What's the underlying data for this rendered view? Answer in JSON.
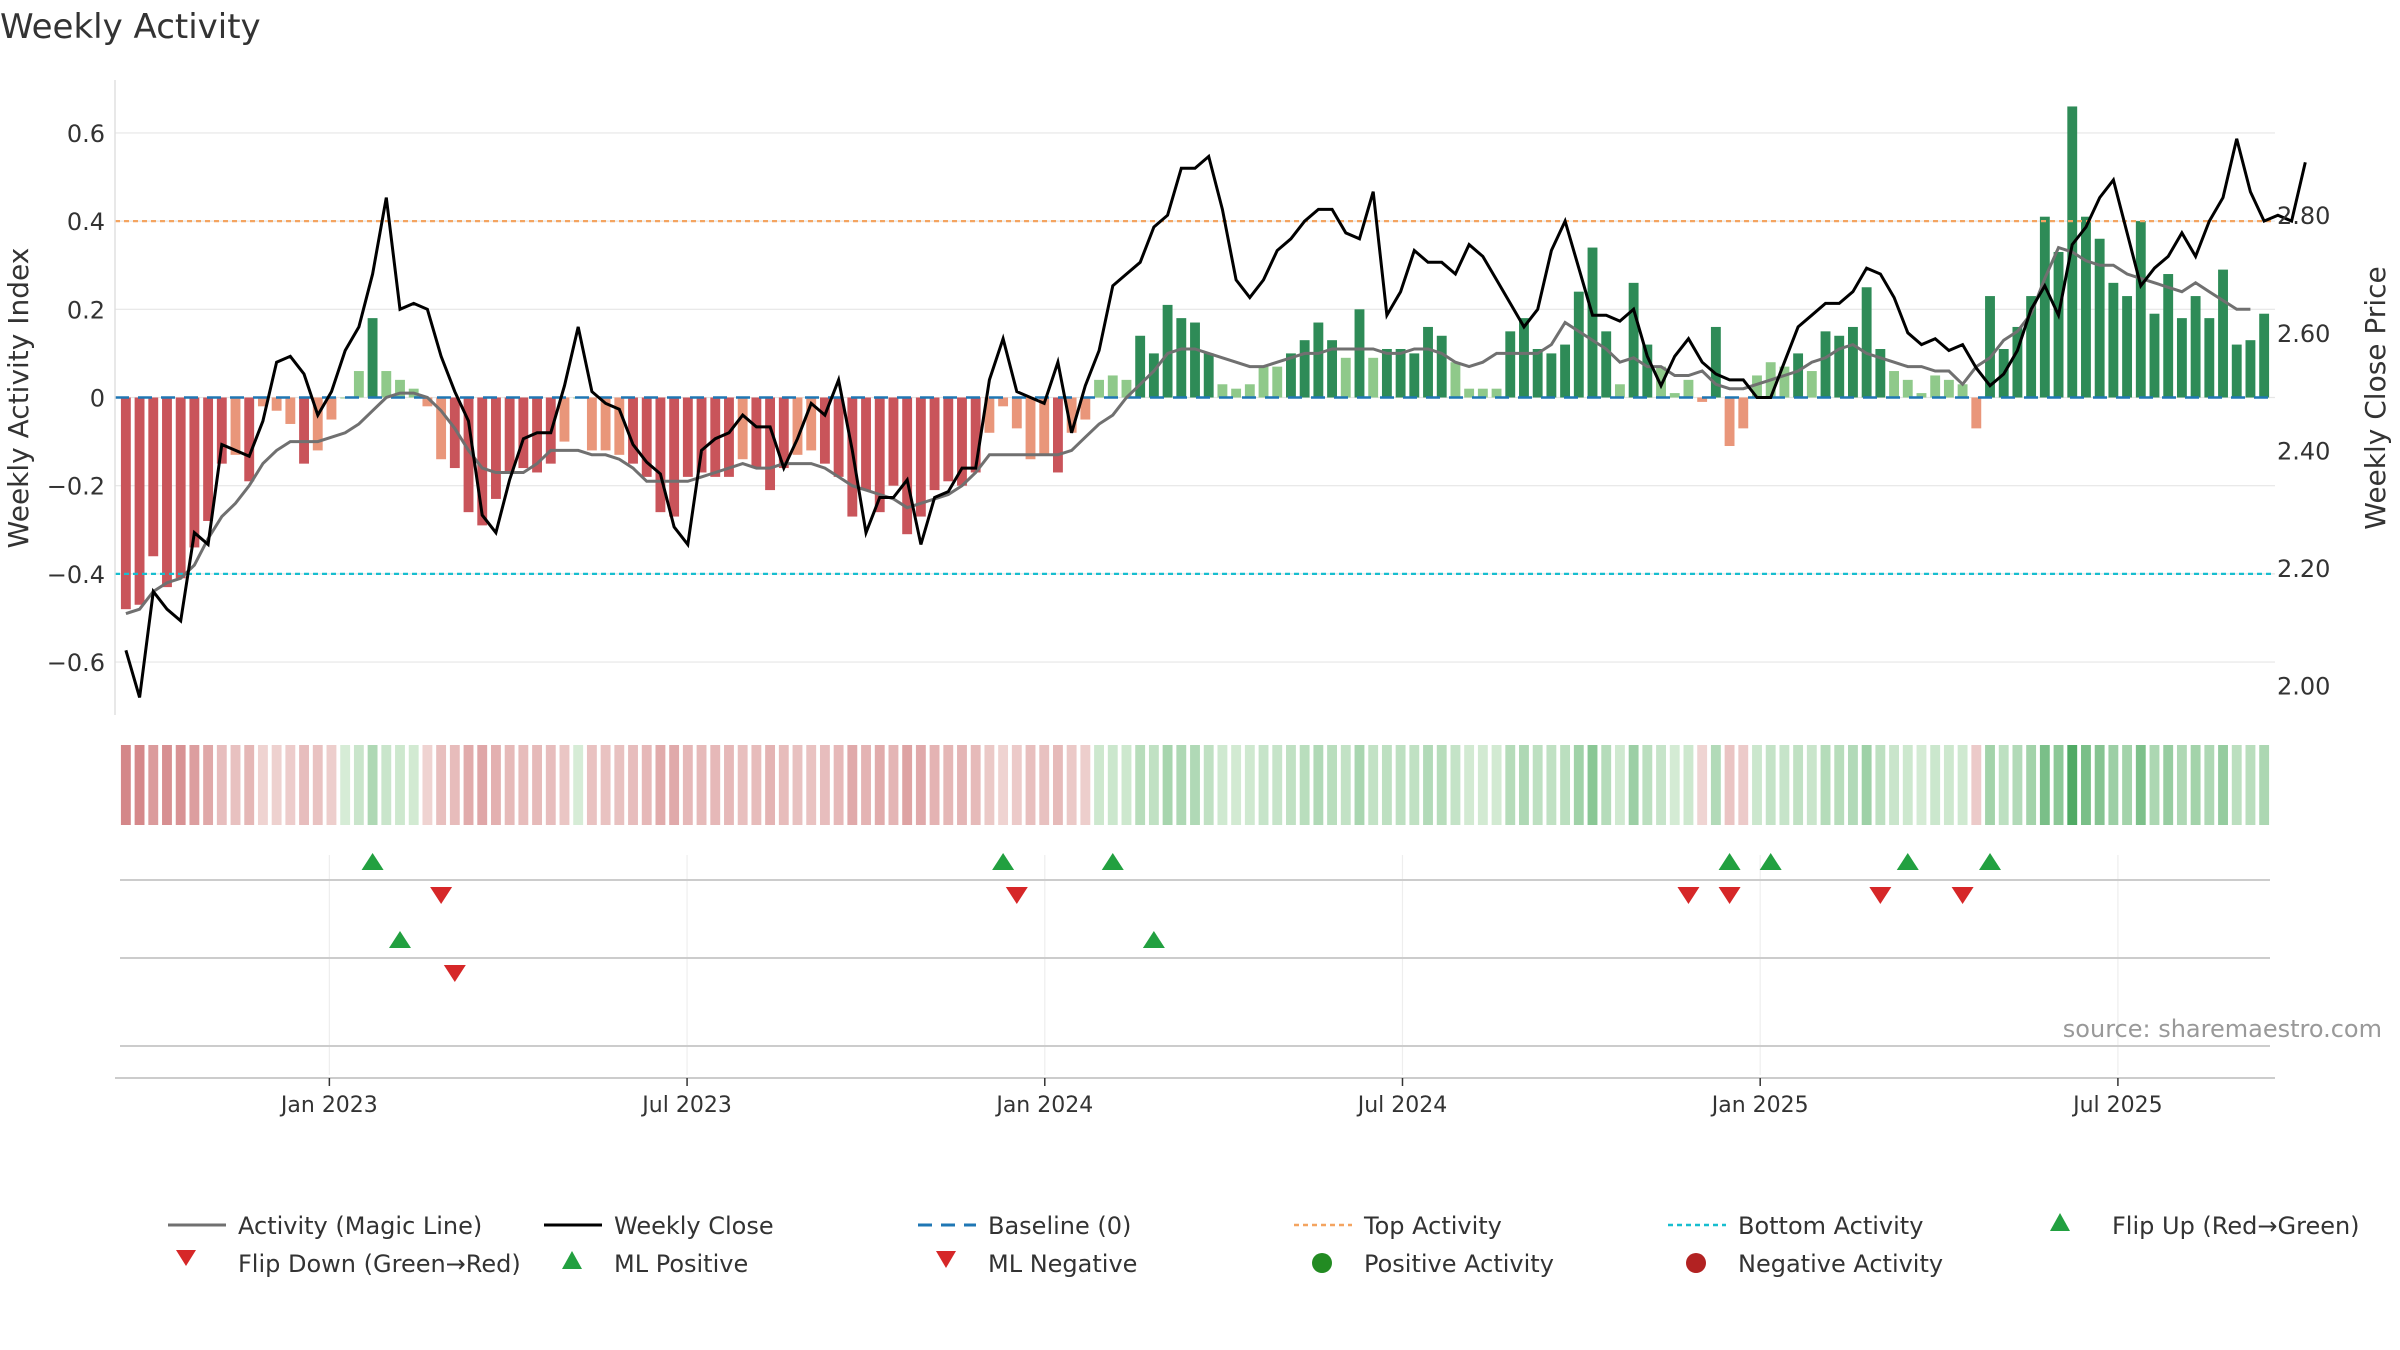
{
  "chart_data": {
    "type": "bar",
    "title": "Weekly Activity",
    "source": "source: sharemaestro.com",
    "xlabel": "",
    "ylabel": "Weekly Activity Index",
    "y2label": "Weekly Close Price",
    "ylim": [
      -0.72,
      0.72
    ],
    "y2lim": [
      1.95,
      3.03
    ],
    "yticks": [
      0.6,
      0.4,
      0.2,
      0,
      -0.2,
      -0.4,
      -0.6
    ],
    "yticklabels": [
      "0.6",
      "0.4",
      "0.2",
      "0",
      "−0.2",
      "−0.4",
      "−0.6"
    ],
    "y2ticks": [
      2.8,
      2.6,
      2.4,
      2.2,
      2.0
    ],
    "y2ticklabels": [
      "2.80",
      "2.60",
      "2.40",
      "2.20",
      "2.00"
    ],
    "x_week_range": [
      0,
      157
    ],
    "xticks": [
      {
        "week": 15,
        "label": "Jan 2023"
      },
      {
        "week": 41,
        "label": "Jul 2023"
      },
      {
        "week": 67,
        "label": "Jan 2024"
      },
      {
        "week": 93,
        "label": "Jul 2024"
      },
      {
        "week": 119,
        "label": "Jan 2025"
      },
      {
        "week": 145,
        "label": "Jul 2025"
      }
    ],
    "top_activity": 0.4,
    "bottom_activity": -0.4,
    "baseline": 0,
    "colors": {
      "strong_pos": "#2e8b57",
      "weak_pos": "#8fc98a",
      "strong_neg": "#c9545a",
      "weak_neg": "#e9967a",
      "magic_line": "#707070",
      "close_line": "#000000",
      "baseline": "#1f77b4",
      "top_activity": "#f4a460",
      "bottom_activity": "#17becf",
      "flip_up": "#22a040",
      "flip_down": "#d62728",
      "pos_dot": "#228b22",
      "neg_dot": "#b22222",
      "grid": "#e6e6e6"
    },
    "activity": [
      -0.48,
      -0.47,
      -0.36,
      -0.43,
      -0.41,
      -0.34,
      -0.28,
      -0.15,
      -0.13,
      -0.19,
      -0.02,
      -0.03,
      -0.06,
      -0.15,
      -0.12,
      -0.05,
      0.0,
      0.06,
      0.18,
      0.06,
      0.04,
      0.02,
      -0.02,
      -0.14,
      -0.16,
      -0.26,
      -0.29,
      -0.23,
      -0.17,
      -0.16,
      -0.17,
      -0.15,
      -0.1,
      0.0,
      -0.12,
      -0.12,
      -0.13,
      -0.15,
      -0.18,
      -0.26,
      -0.27,
      -0.18,
      -0.17,
      -0.18,
      -0.18,
      -0.14,
      -0.16,
      -0.21,
      -0.16,
      -0.13,
      -0.12,
      -0.15,
      -0.18,
      -0.27,
      -0.21,
      -0.26,
      -0.2,
      -0.31,
      -0.27,
      -0.21,
      -0.19,
      -0.2,
      -0.17,
      -0.08,
      -0.02,
      -0.07,
      -0.14,
      -0.13,
      -0.17,
      -0.08,
      -0.05,
      0.04,
      0.05,
      0.04,
      0.14,
      0.1,
      0.21,
      0.18,
      0.17,
      0.1,
      0.03,
      0.02,
      0.03,
      0.07,
      0.07,
      0.1,
      0.13,
      0.17,
      0.13,
      0.09,
      0.2,
      0.09,
      0.11,
      0.11,
      0.1,
      0.16,
      0.14,
      0.08,
      0.02,
      0.02,
      0.02,
      0.15,
      0.18,
      0.11,
      0.1,
      0.12,
      0.24,
      0.34,
      0.15,
      0.03,
      0.26,
      0.12,
      0.07,
      0.01,
      0.04,
      -0.01,
      0.16,
      -0.11,
      -0.07,
      0.05,
      0.08,
      0.07,
      0.1,
      0.06,
      0.15,
      0.14,
      0.16,
      0.25,
      0.11,
      0.06,
      0.04,
      0.01,
      0.05,
      0.04,
      0.03,
      -0.07,
      0.23,
      0.11,
      0.16,
      0.23,
      0.41,
      0.33,
      0.66,
      0.41,
      0.36,
      0.26,
      0.23,
      0.4,
      0.19,
      0.28,
      0.18,
      0.23,
      0.18,
      0.29,
      0.12,
      0.13,
      0.19
    ],
    "magic_line": [
      -0.49,
      -0.48,
      -0.44,
      -0.42,
      -0.41,
      -0.38,
      -0.32,
      -0.27,
      -0.24,
      -0.2,
      -0.15,
      -0.12,
      -0.1,
      -0.1,
      -0.1,
      -0.09,
      -0.08,
      -0.06,
      -0.03,
      0.0,
      0.01,
      0.01,
      0.0,
      -0.03,
      -0.07,
      -0.12,
      -0.16,
      -0.17,
      -0.17,
      -0.17,
      -0.15,
      -0.12,
      -0.12,
      -0.12,
      -0.13,
      -0.13,
      -0.14,
      -0.16,
      -0.19,
      -0.19,
      -0.19,
      -0.19,
      -0.18,
      -0.17,
      -0.16,
      -0.15,
      -0.16,
      -0.16,
      -0.15,
      -0.15,
      -0.15,
      -0.16,
      -0.18,
      -0.2,
      -0.21,
      -0.22,
      -0.23,
      -0.25,
      -0.24,
      -0.23,
      -0.22,
      -0.2,
      -0.17,
      -0.13,
      -0.13,
      -0.13,
      -0.13,
      -0.13,
      -0.13,
      -0.12,
      -0.09,
      -0.06,
      -0.04,
      0.0,
      0.03,
      0.06,
      0.1,
      0.11,
      0.11,
      0.1,
      0.09,
      0.08,
      0.07,
      0.07,
      0.08,
      0.09,
      0.1,
      0.1,
      0.11,
      0.11,
      0.11,
      0.11,
      0.1,
      0.1,
      0.11,
      0.11,
      0.1,
      0.08,
      0.07,
      0.08,
      0.1,
      0.1,
      0.1,
      0.1,
      0.12,
      0.17,
      0.15,
      0.13,
      0.11,
      0.08,
      0.09,
      0.07,
      0.07,
      0.05,
      0.05,
      0.06,
      0.03,
      0.02,
      0.02,
      0.03,
      0.04,
      0.05,
      0.06,
      0.08,
      0.09,
      0.11,
      0.12,
      0.1,
      0.09,
      0.08,
      0.07,
      0.07,
      0.06,
      0.06,
      0.03,
      0.07,
      0.09,
      0.13,
      0.15,
      0.19,
      0.27,
      0.34,
      0.33,
      0.31,
      0.3,
      0.3,
      0.28,
      0.27,
      0.26,
      0.25,
      0.24,
      0.26,
      0.24,
      0.22,
      0.2,
      0.2
    ],
    "close": [
      2.06,
      1.98,
      2.16,
      2.13,
      2.11,
      2.26,
      2.24,
      2.41,
      2.4,
      2.39,
      2.45,
      2.55,
      2.56,
      2.53,
      2.46,
      2.5,
      2.57,
      2.61,
      2.7,
      2.83,
      2.64,
      2.65,
      2.64,
      2.56,
      2.5,
      2.45,
      2.29,
      2.26,
      2.35,
      2.42,
      2.43,
      2.43,
      2.51,
      2.61,
      2.5,
      2.48,
      2.47,
      2.41,
      2.38,
      2.36,
      2.27,
      2.24,
      2.4,
      2.42,
      2.43,
      2.46,
      2.44,
      2.44,
      2.37,
      2.42,
      2.48,
      2.46,
      2.52,
      2.4,
      2.26,
      2.32,
      2.32,
      2.35,
      2.24,
      2.32,
      2.33,
      2.37,
      2.37,
      2.52,
      2.59,
      2.5,
      2.49,
      2.48,
      2.55,
      2.43,
      2.51,
      2.57,
      2.68,
      2.7,
      2.72,
      2.78,
      2.8,
      2.88,
      2.88,
      2.9,
      2.81,
      2.69,
      2.66,
      2.69,
      2.74,
      2.76,
      2.79,
      2.81,
      2.81,
      2.77,
      2.76,
      2.84,
      2.63,
      2.67,
      2.74,
      2.72,
      2.72,
      2.7,
      2.75,
      2.73,
      2.69,
      2.65,
      2.61,
      2.64,
      2.74,
      2.79,
      2.71,
      2.63,
      2.63,
      2.62,
      2.64,
      2.56,
      2.51,
      2.56,
      2.59,
      2.55,
      2.53,
      2.52,
      2.52,
      2.49,
      2.49,
      2.55,
      2.61,
      2.63,
      2.65,
      2.65,
      2.67,
      2.71,
      2.7,
      2.66,
      2.6,
      2.58,
      2.59,
      2.57,
      2.58,
      2.54,
      2.51,
      2.53,
      2.57,
      2.64,
      2.68,
      2.63,
      2.75,
      2.78,
      2.83,
      2.86,
      2.77,
      2.68,
      2.71,
      2.73,
      2.77,
      2.73,
      2.79,
      2.83,
      2.93,
      2.84,
      2.79,
      2.8,
      2.79,
      2.89
    ]
  },
  "heatmap": {
    "label": "activity strip"
  },
  "signals": {
    "row1_up": [
      18,
      64,
      72,
      117,
      120,
      130,
      136
    ],
    "row1_down": [
      23,
      65,
      114,
      117,
      128,
      134
    ],
    "row2_up": [
      20,
      75
    ],
    "row2_down": [
      24
    ]
  },
  "legend": {
    "magic_line": "Activity (Magic Line)",
    "weekly_close": "Weekly Close",
    "baseline": "Baseline (0)",
    "top_activity": "Top Activity",
    "bottom_activity": "Bottom Activity",
    "flip_up": "Flip Up (Red→Green)",
    "flip_down": "Flip Down (Green→Red)",
    "ml_positive": "ML Positive",
    "ml_negative": "ML Negative",
    "positive_activity": "Positive Activity",
    "negative_activity": "Negative Activity"
  }
}
